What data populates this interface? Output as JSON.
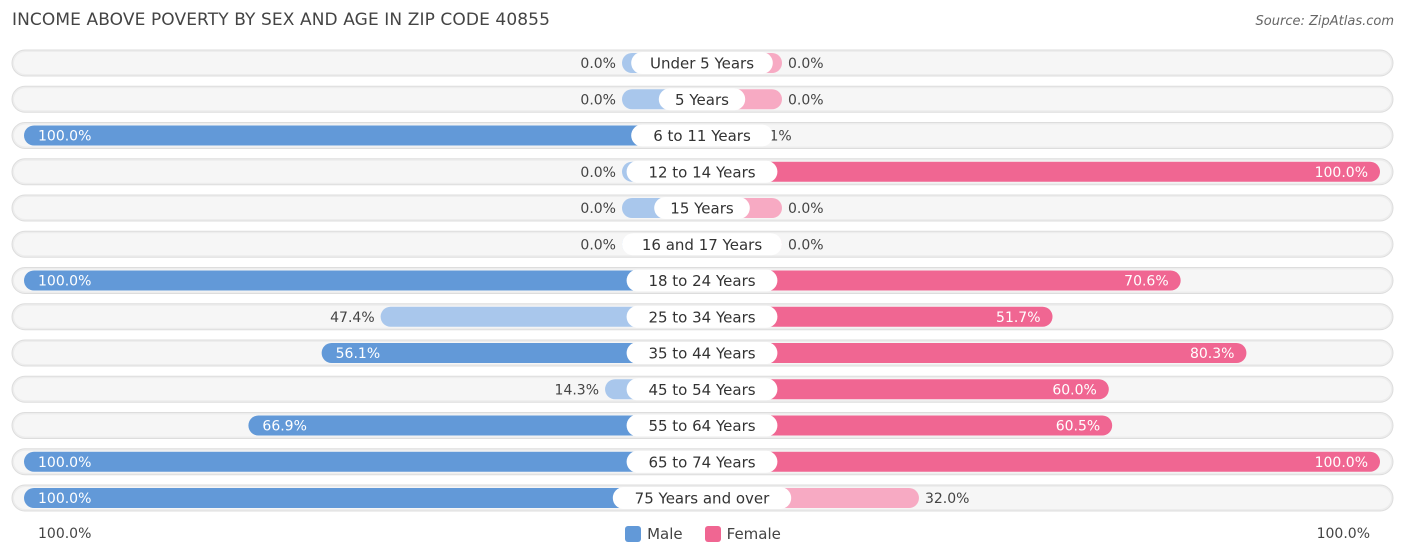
{
  "header": {
    "title": "INCOME ABOVE POVERTY BY SEX AND AGE IN ZIP CODE 40855",
    "source": "Source: ZipAtlas.com"
  },
  "colors": {
    "male_strong": "#6299d8",
    "male_light": "#a9c7ec",
    "female_strong": "#f06692",
    "female_light": "#f7aac3",
    "row_bg": "#eeeeee"
  },
  "legend": {
    "male_label": "Male",
    "female_label": "Female"
  },
  "axis": {
    "left_label": "100.0%",
    "right_label": "100.0%"
  },
  "chart_data": {
    "type": "bar",
    "orientation": "horizontal-diverging",
    "title": "INCOME ABOVE POVERTY BY SEX AND AGE IN ZIP CODE 40855",
    "xlim": [
      -100,
      100
    ],
    "categories": [
      "Under 5 Years",
      "5 Years",
      "6 to 11 Years",
      "12 to 14 Years",
      "15 Years",
      "16 and 17 Years",
      "18 to 24 Years",
      "25 to 34 Years",
      "35 to 44 Years",
      "45 to 54 Years",
      "55 to 64 Years",
      "65 to 74 Years",
      "75 Years and over"
    ],
    "series": [
      {
        "name": "Male",
        "values": [
          0.0,
          0.0,
          100.0,
          0.0,
          0.0,
          0.0,
          100.0,
          47.4,
          56.1,
          14.3,
          66.9,
          100.0,
          100.0
        ],
        "labels": [
          "0.0%",
          "0.0%",
          "100.0%",
          "0.0%",
          "0.0%",
          "0.0%",
          "100.0%",
          "47.4%",
          "56.1%",
          "14.3%",
          "66.9%",
          "100.0%",
          "100.0%"
        ]
      },
      {
        "name": "Female",
        "values": [
          0.0,
          0.0,
          7.1,
          100.0,
          0.0,
          0.0,
          70.6,
          51.7,
          80.3,
          60.0,
          60.5,
          100.0,
          32.0
        ],
        "labels": [
          "0.0%",
          "0.0%",
          "7.1%",
          "100.0%",
          "0.0%",
          "0.0%",
          "70.6%",
          "51.7%",
          "80.3%",
          "60.0%",
          "60.5%",
          "100.0%",
          "32.0%"
        ]
      }
    ],
    "legend_position": "bottom-center"
  }
}
